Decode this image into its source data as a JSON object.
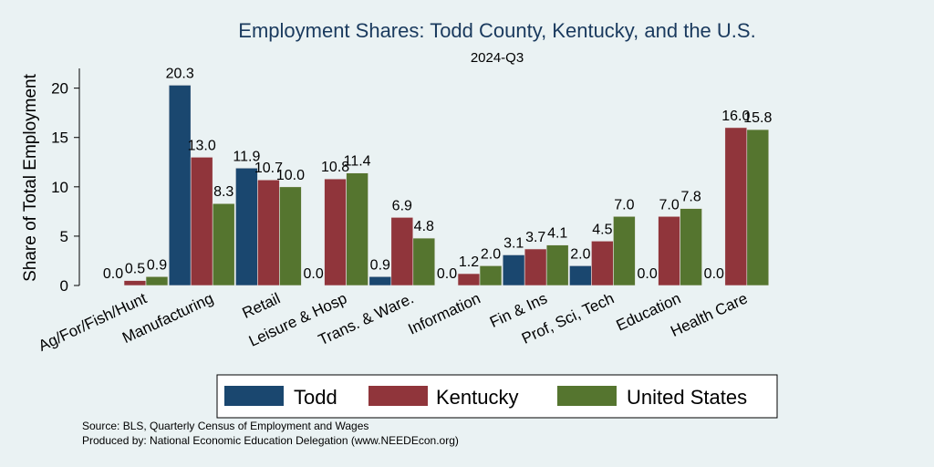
{
  "chart_data": {
    "type": "bar",
    "title": "Employment Shares: Todd County, Kentucky, and the U.S.",
    "subtitle": "2024-Q3",
    "ylabel": "Share of Total Employment",
    "xlabel": "",
    "ylim": [
      0,
      22
    ],
    "yticks": [
      0,
      5,
      10,
      15,
      20
    ],
    "categories": [
      "Ag/For/Fish/Hunt",
      "Manufacturing",
      "Retail",
      "Leisure & Hosp",
      "Trans. & Ware.",
      "Information",
      "Fin & Ins",
      "Prof, Sci, Tech",
      "Education",
      "Health Care"
    ],
    "series": [
      {
        "name": "Todd",
        "color": "#1a476f",
        "values": [
          0.0,
          20.3,
          11.9,
          0.0,
          0.9,
          0.0,
          3.1,
          2.0,
          0.0,
          0.0
        ]
      },
      {
        "name": "Kentucky",
        "color": "#90353b",
        "values": [
          0.5,
          13.0,
          10.7,
          10.8,
          6.9,
          1.2,
          3.7,
          4.5,
          7.0,
          16.0
        ]
      },
      {
        "name": "United States",
        "color": "#55752f",
        "values": [
          0.9,
          8.3,
          10.0,
          11.4,
          4.8,
          2.0,
          4.1,
          7.0,
          7.8,
          15.8
        ]
      }
    ],
    "data_labels": [
      [
        "0.0",
        "20.3",
        "11.9",
        "0.0",
        "0.9",
        "0.0",
        "3.1",
        "2.0",
        "0.0",
        "0.0"
      ],
      [
        "0.5",
        "13.0",
        "10.7",
        "10.8",
        "6.9",
        "1.2",
        "3.7",
        "4.5",
        "7.0",
        "16.0"
      ],
      [
        "0.9",
        "8.3",
        "10.0",
        "11.4",
        "4.8",
        "2.0",
        "4.1",
        "7.0",
        "7.8",
        "15.8"
      ]
    ],
    "legend_position": "bottom",
    "grid": false
  },
  "notes": {
    "source": "Source: BLS, Quarterly Census of Employment and Wages",
    "produced_by": "Produced by: National Economic Education Delegation (www.NEEDEcon.org)"
  }
}
